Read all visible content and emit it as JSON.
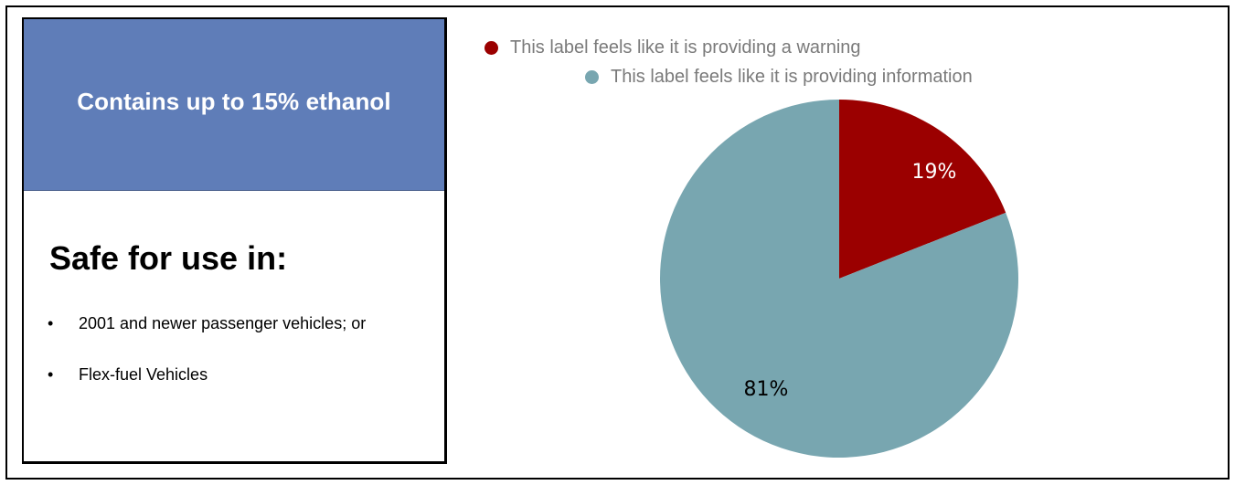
{
  "label": {
    "header": "Contains up to 15% ethanol",
    "heading": "Safe for use in:",
    "bullets": [
      "2001 and newer passenger vehicles; or",
      "Flex-fuel Vehicles"
    ],
    "colors": {
      "header_bg": "#5f7db8",
      "header_text": "#ffffff"
    }
  },
  "chart_data": {
    "type": "pie",
    "categories": [
      "This label feels like it is providing a warning",
      "This label feels like it is providing information"
    ],
    "values": [
      19,
      81
    ],
    "data_labels": [
      "19%",
      "81%"
    ],
    "colors": [
      "#9b0000",
      "#78a6b0"
    ],
    "label_colors": [
      "#ffffff",
      "#000000"
    ],
    "legend_position": "top",
    "start_angle": "12 o'clock, clockwise"
  }
}
